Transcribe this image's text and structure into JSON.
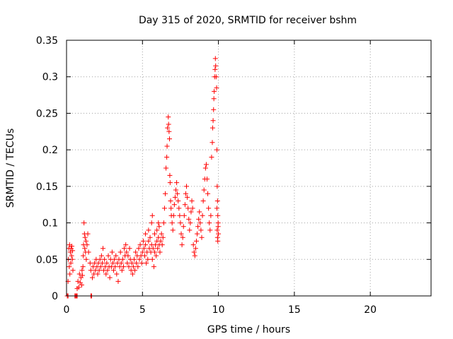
{
  "chart_data": {
    "type": "scatter",
    "title": "Day 315 of 2020, SRMTID for receiver bshm",
    "xlabel": "GPS time / hours",
    "ylabel": "SRMTID / TECUs",
    "xlim": [
      0,
      24
    ],
    "ylim": [
      0,
      0.35
    ],
    "xticks": [
      0,
      5,
      10,
      15,
      20
    ],
    "xtick_labels": [
      "0",
      "5",
      "10",
      "15",
      "20"
    ],
    "yticks": [
      0,
      0.05,
      0.1,
      0.15,
      0.2,
      0.25,
      0.3,
      0.35
    ],
    "ytick_labels": [
      "0",
      "0.05",
      "0.1",
      "0.15",
      "0.2",
      "0.25",
      "0.3",
      "0.35"
    ],
    "grid": true,
    "marker": "+",
    "color": "#ff0000",
    "series": [
      {
        "points": [
          [
            0.05,
            0.0
          ],
          [
            0.1,
            0.0
          ],
          [
            0.55,
            0.0
          ],
          [
            0.6,
            0.0
          ],
          [
            0.65,
            0.0
          ],
          [
            0.7,
            0.0
          ],
          [
            1.6,
            0.0
          ],
          [
            1.65,
            0.0
          ],
          [
            0.1,
            0.02
          ],
          [
            0.12,
            0.05
          ],
          [
            0.15,
            0.065
          ],
          [
            0.18,
            0.04
          ],
          [
            0.2,
            0.07
          ],
          [
            0.22,
            0.03
          ],
          [
            0.25,
            0.06
          ],
          [
            0.28,
            0.045
          ],
          [
            0.3,
            0.065
          ],
          [
            0.33,
            0.055
          ],
          [
            0.35,
            0.068
          ],
          [
            0.38,
            0.05
          ],
          [
            0.4,
            0.062
          ],
          [
            0.42,
            0.035
          ],
          [
            0.7,
            0.01
          ],
          [
            0.75,
            0.02
          ],
          [
            0.8,
            0.012
          ],
          [
            0.85,
            0.03
          ],
          [
            0.9,
            0.018
          ],
          [
            0.95,
            0.025
          ],
          [
            1.0,
            0.015
          ],
          [
            1.02,
            0.035
          ],
          [
            1.05,
            0.028
          ],
          [
            1.08,
            0.04
          ],
          [
            1.1,
            0.055
          ],
          [
            1.12,
            0.07
          ],
          [
            1.15,
            0.1
          ],
          [
            1.18,
            0.085
          ],
          [
            1.2,
            0.065
          ],
          [
            1.22,
            0.08
          ],
          [
            1.25,
            0.06
          ],
          [
            1.28,
            0.075
          ],
          [
            1.3,
            0.05
          ],
          [
            1.35,
            0.07
          ],
          [
            1.4,
            0.085
          ],
          [
            1.45,
            0.06
          ],
          [
            1.55,
            0.045
          ],
          [
            1.6,
            0.035
          ],
          [
            1.7,
            0.025
          ],
          [
            1.75,
            0.04
          ],
          [
            1.8,
            0.03
          ],
          [
            1.85,
            0.045
          ],
          [
            1.9,
            0.035
          ],
          [
            1.95,
            0.05
          ],
          [
            2.0,
            0.04
          ],
          [
            2.05,
            0.03
          ],
          [
            2.1,
            0.045
          ],
          [
            2.15,
            0.035
          ],
          [
            2.2,
            0.05
          ],
          [
            2.25,
            0.04
          ],
          [
            2.3,
            0.055
          ],
          [
            2.35,
            0.045
          ],
          [
            2.4,
            0.065
          ],
          [
            2.45,
            0.035
          ],
          [
            2.5,
            0.05
          ],
          [
            2.55,
            0.04
          ],
          [
            2.6,
            0.03
          ],
          [
            2.65,
            0.045
          ],
          [
            2.7,
            0.035
          ],
          [
            2.75,
            0.055
          ],
          [
            2.8,
            0.04
          ],
          [
            2.85,
            0.025
          ],
          [
            2.9,
            0.05
          ],
          [
            2.95,
            0.04
          ],
          [
            3.0,
            0.06
          ],
          [
            3.05,
            0.045
          ],
          [
            3.1,
            0.035
          ],
          [
            3.15,
            0.05
          ],
          [
            3.2,
            0.04
          ],
          [
            3.25,
            0.055
          ],
          [
            3.3,
            0.03
          ],
          [
            3.35,
            0.045
          ],
          [
            3.4,
            0.02
          ],
          [
            3.45,
            0.05
          ],
          [
            3.5,
            0.04
          ],
          [
            3.55,
            0.06
          ],
          [
            3.6,
            0.045
          ],
          [
            3.65,
            0.035
          ],
          [
            3.7,
            0.05
          ],
          [
            3.75,
            0.04
          ],
          [
            3.8,
            0.065
          ],
          [
            3.85,
            0.055
          ],
          [
            3.9,
            0.07
          ],
          [
            3.95,
            0.06
          ],
          [
            4.0,
            0.045
          ],
          [
            4.05,
            0.055
          ],
          [
            4.1,
            0.04
          ],
          [
            4.15,
            0.065
          ],
          [
            4.2,
            0.05
          ],
          [
            4.25,
            0.035
          ],
          [
            4.3,
            0.045
          ],
          [
            4.35,
            0.03
          ],
          [
            4.4,
            0.04
          ],
          [
            4.45,
            0.05
          ],
          [
            4.5,
            0.035
          ],
          [
            4.55,
            0.06
          ],
          [
            4.6,
            0.045
          ],
          [
            4.65,
            0.055
          ],
          [
            4.7,
            0.04
          ],
          [
            4.75,
            0.065
          ],
          [
            4.8,
            0.05
          ],
          [
            4.85,
            0.07
          ],
          [
            4.9,
            0.055
          ],
          [
            4.95,
            0.045
          ],
          [
            5.0,
            0.06
          ],
          [
            5.05,
            0.075
          ],
          [
            5.1,
            0.065
          ],
          [
            5.15,
            0.055
          ],
          [
            5.2,
            0.07
          ],
          [
            5.25,
            0.045
          ],
          [
            5.3,
            0.06
          ],
          [
            5.35,
            0.05
          ],
          [
            5.4,
            0.075
          ],
          [
            5.45,
            0.065
          ],
          [
            5.5,
            0.08
          ],
          [
            5.55,
            0.06
          ],
          [
            5.6,
            0.07
          ],
          [
            5.65,
            0.05
          ],
          [
            5.7,
            0.065
          ],
          [
            5.75,
            0.04
          ],
          [
            5.8,
            0.06
          ],
          [
            5.85,
            0.07
          ],
          [
            5.9,
            0.055
          ],
          [
            5.95,
            0.075
          ],
          [
            6.0,
            0.065
          ],
          [
            6.05,
            0.08
          ],
          [
            6.1,
            0.07
          ],
          [
            6.15,
            0.06
          ],
          [
            5.2,
            0.085
          ],
          [
            5.4,
            0.09
          ],
          [
            5.6,
            0.1
          ],
          [
            5.65,
            0.11
          ],
          [
            5.8,
            0.085
          ],
          [
            5.95,
            0.09
          ],
          [
            6.05,
            0.1
          ],
          [
            6.1,
            0.095
          ],
          [
            6.2,
            0.075
          ],
          [
            6.25,
            0.085
          ],
          [
            6.3,
            0.07
          ],
          [
            6.35,
            0.08
          ],
          [
            6.4,
            0.1
          ],
          [
            6.45,
            0.12
          ],
          [
            6.5,
            0.14
          ],
          [
            6.55,
            0.175
          ],
          [
            6.6,
            0.19
          ],
          [
            6.62,
            0.205
          ],
          [
            6.65,
            0.23
          ],
          [
            6.7,
            0.245
          ],
          [
            6.72,
            0.235
          ],
          [
            6.75,
            0.225
          ],
          [
            6.78,
            0.215
          ],
          [
            6.8,
            0.165
          ],
          [
            6.82,
            0.155
          ],
          [
            6.85,
            0.13
          ],
          [
            6.88,
            0.12
          ],
          [
            6.9,
            0.11
          ],
          [
            6.95,
            0.1
          ],
          [
            7.0,
            0.09
          ],
          [
            7.05,
            0.11
          ],
          [
            7.1,
            0.125
          ],
          [
            7.15,
            0.135
          ],
          [
            7.2,
            0.145
          ],
          [
            7.25,
            0.155
          ],
          [
            7.3,
            0.14
          ],
          [
            7.35,
            0.13
          ],
          [
            7.4,
            0.12
          ],
          [
            7.45,
            0.11
          ],
          [
            7.5,
            0.1
          ],
          [
            7.55,
            0.085
          ],
          [
            7.6,
            0.07
          ],
          [
            7.65,
            0.08
          ],
          [
            7.7,
            0.095
          ],
          [
            7.75,
            0.11
          ],
          [
            7.8,
            0.125
          ],
          [
            7.85,
            0.14
          ],
          [
            7.9,
            0.15
          ],
          [
            7.95,
            0.135
          ],
          [
            8.0,
            0.12
          ],
          [
            8.05,
            0.105
          ],
          [
            8.1,
            0.09
          ],
          [
            8.15,
            0.1
          ],
          [
            8.2,
            0.115
          ],
          [
            8.25,
            0.13
          ],
          [
            8.3,
            0.12
          ],
          [
            8.35,
            0.07
          ],
          [
            8.4,
            0.06
          ],
          [
            8.45,
            0.055
          ],
          [
            8.5,
            0.065
          ],
          [
            8.55,
            0.075
          ],
          [
            8.6,
            0.085
          ],
          [
            8.65,
            0.095
          ],
          [
            8.7,
            0.105
          ],
          [
            8.75,
            0.115
          ],
          [
            8.8,
            0.1
          ],
          [
            8.85,
            0.09
          ],
          [
            8.9,
            0.08
          ],
          [
            8.95,
            0.11
          ],
          [
            9.0,
            0.13
          ],
          [
            9.05,
            0.145
          ],
          [
            9.1,
            0.16
          ],
          [
            9.15,
            0.175
          ],
          [
            9.2,
            0.18
          ],
          [
            9.25,
            0.16
          ],
          [
            9.3,
            0.14
          ],
          [
            9.35,
            0.12
          ],
          [
            9.4,
            0.1
          ],
          [
            9.45,
            0.09
          ],
          [
            9.5,
            0.11
          ],
          [
            9.55,
            0.19
          ],
          [
            9.6,
            0.21
          ],
          [
            9.62,
            0.23
          ],
          [
            9.65,
            0.24
          ],
          [
            9.68,
            0.255
          ],
          [
            9.7,
            0.27
          ],
          [
            9.72,
            0.28
          ],
          [
            9.75,
            0.3
          ],
          [
            9.78,
            0.31
          ],
          [
            9.8,
            0.325
          ],
          [
            9.82,
            0.315
          ],
          [
            9.85,
            0.3
          ],
          [
            9.88,
            0.285
          ],
          [
            9.9,
            0.2
          ],
          [
            9.92,
            0.15
          ],
          [
            9.94,
            0.13
          ],
          [
            9.96,
            0.11
          ],
          [
            9.98,
            0.095
          ],
          [
            10.0,
            0.085
          ],
          [
            9.96,
            0.075
          ],
          [
            9.98,
            0.1
          ],
          [
            9.94,
            0.08
          ],
          [
            9.9,
            0.12
          ],
          [
            9.92,
            0.09
          ]
        ]
      }
    ]
  }
}
